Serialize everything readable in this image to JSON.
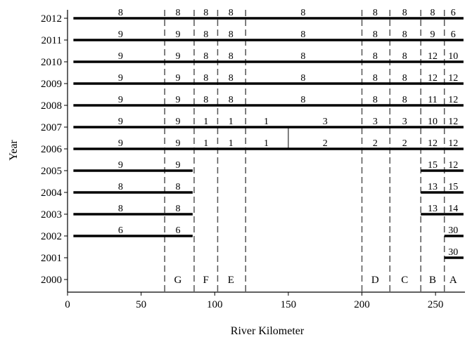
{
  "chart_data": {
    "type": "timeline",
    "title": "",
    "xlabel": "River Kilometer",
    "ylabel": "Year",
    "xlim": [
      0,
      270
    ],
    "ylim": [
      2000,
      2012
    ],
    "xticks": [
      0,
      50,
      100,
      150,
      200,
      250
    ],
    "xtick_labels": [
      "0",
      "50",
      "100",
      "150",
      "200",
      "250"
    ],
    "yticks": [
      2000,
      2001,
      2002,
      2003,
      2004,
      2005,
      2006,
      2007,
      2008,
      2009,
      2010,
      2011,
      2012
    ],
    "ytick_labels": [
      "2000",
      "2001",
      "2002",
      "2003",
      "2004",
      "2005",
      "2006",
      "2007",
      "2008",
      "2009",
      "2010",
      "2011",
      "2012"
    ],
    "colors": {
      "line": "#000000",
      "dashed": "#555555"
    },
    "boundaries": [
      66,
      86,
      102,
      121,
      200,
      219,
      240,
      256
    ],
    "sub_boundaries": [
      {
        "x": 150,
        "years": [
          2006,
          2007
        ]
      }
    ],
    "reaches": [
      {
        "label": "G",
        "x": 75
      },
      {
        "label": "F",
        "x": 94
      },
      {
        "label": "E",
        "x": 111
      },
      {
        "label": "D",
        "x": 209
      },
      {
        "label": "C",
        "x": 229
      },
      {
        "label": "B",
        "x": 248
      },
      {
        "label": "A",
        "x": 262
      }
    ],
    "bars": [
      {
        "year": 2012,
        "start": 4,
        "end": 269
      },
      {
        "year": 2011,
        "start": 4,
        "end": 269
      },
      {
        "year": 2010,
        "start": 4,
        "end": 269
      },
      {
        "year": 2009,
        "start": 4,
        "end": 269
      },
      {
        "year": 2008,
        "start": 4,
        "end": 269
      },
      {
        "year": 2007,
        "start": 4,
        "end": 269
      },
      {
        "year": 2006,
        "start": 4,
        "end": 269
      },
      {
        "year": 2005,
        "start": 4,
        "end": 85
      },
      {
        "year": 2005,
        "start": 240,
        "end": 269
      },
      {
        "year": 2004,
        "start": 4,
        "end": 85
      },
      {
        "year": 2004,
        "start": 240,
        "end": 269
      },
      {
        "year": 2003,
        "start": 4,
        "end": 85
      },
      {
        "year": 2003,
        "start": 240,
        "end": 269
      },
      {
        "year": 2002,
        "start": 4,
        "end": 85
      },
      {
        "year": 2002,
        "start": 256,
        "end": 269
      },
      {
        "year": 2001,
        "start": 256,
        "end": 269
      }
    ],
    "values": [
      {
        "year": 2012,
        "x": 36,
        "text": "8"
      },
      {
        "year": 2012,
        "x": 75,
        "text": "8"
      },
      {
        "year": 2012,
        "x": 94,
        "text": "8"
      },
      {
        "year": 2012,
        "x": 111,
        "text": "8"
      },
      {
        "year": 2012,
        "x": 160,
        "text": "8"
      },
      {
        "year": 2012,
        "x": 209,
        "text": "8"
      },
      {
        "year": 2012,
        "x": 229,
        "text": "8"
      },
      {
        "year": 2012,
        "x": 248,
        "text": "8"
      },
      {
        "year": 2012,
        "x": 262,
        "text": "6"
      },
      {
        "year": 2011,
        "x": 36,
        "text": "9"
      },
      {
        "year": 2011,
        "x": 75,
        "text": "9"
      },
      {
        "year": 2011,
        "x": 94,
        "text": "8"
      },
      {
        "year": 2011,
        "x": 111,
        "text": "8"
      },
      {
        "year": 2011,
        "x": 160,
        "text": "8"
      },
      {
        "year": 2011,
        "x": 209,
        "text": "8"
      },
      {
        "year": 2011,
        "x": 229,
        "text": "8"
      },
      {
        "year": 2011,
        "x": 248,
        "text": "9"
      },
      {
        "year": 2011,
        "x": 262,
        "text": "6"
      },
      {
        "year": 2010,
        "x": 36,
        "text": "9"
      },
      {
        "year": 2010,
        "x": 75,
        "text": "9"
      },
      {
        "year": 2010,
        "x": 94,
        "text": "8"
      },
      {
        "year": 2010,
        "x": 111,
        "text": "8"
      },
      {
        "year": 2010,
        "x": 160,
        "text": "8"
      },
      {
        "year": 2010,
        "x": 209,
        "text": "8"
      },
      {
        "year": 2010,
        "x": 229,
        "text": "8"
      },
      {
        "year": 2010,
        "x": 248,
        "text": "12"
      },
      {
        "year": 2010,
        "x": 262,
        "text": "10"
      },
      {
        "year": 2009,
        "x": 36,
        "text": "9"
      },
      {
        "year": 2009,
        "x": 75,
        "text": "9"
      },
      {
        "year": 2009,
        "x": 94,
        "text": "8"
      },
      {
        "year": 2009,
        "x": 111,
        "text": "8"
      },
      {
        "year": 2009,
        "x": 160,
        "text": "8"
      },
      {
        "year": 2009,
        "x": 209,
        "text": "8"
      },
      {
        "year": 2009,
        "x": 229,
        "text": "8"
      },
      {
        "year": 2009,
        "x": 248,
        "text": "12"
      },
      {
        "year": 2009,
        "x": 262,
        "text": "12"
      },
      {
        "year": 2008,
        "x": 36,
        "text": "9"
      },
      {
        "year": 2008,
        "x": 75,
        "text": "9"
      },
      {
        "year": 2008,
        "x": 94,
        "text": "8"
      },
      {
        "year": 2008,
        "x": 111,
        "text": "8"
      },
      {
        "year": 2008,
        "x": 160,
        "text": "8"
      },
      {
        "year": 2008,
        "x": 209,
        "text": "8"
      },
      {
        "year": 2008,
        "x": 229,
        "text": "8"
      },
      {
        "year": 2008,
        "x": 248,
        "text": "11"
      },
      {
        "year": 2008,
        "x": 262,
        "text": "12"
      },
      {
        "year": 2007,
        "x": 36,
        "text": "9"
      },
      {
        "year": 2007,
        "x": 75,
        "text": "9"
      },
      {
        "year": 2007,
        "x": 94,
        "text": "1"
      },
      {
        "year": 2007,
        "x": 111,
        "text": "1"
      },
      {
        "year": 2007,
        "x": 135,
        "text": "1"
      },
      {
        "year": 2007,
        "x": 175,
        "text": "3"
      },
      {
        "year": 2007,
        "x": 209,
        "text": "3"
      },
      {
        "year": 2007,
        "x": 229,
        "text": "3"
      },
      {
        "year": 2007,
        "x": 248,
        "text": "10"
      },
      {
        "year": 2007,
        "x": 262,
        "text": "12"
      },
      {
        "year": 2006,
        "x": 36,
        "text": "9"
      },
      {
        "year": 2006,
        "x": 75,
        "text": "9"
      },
      {
        "year": 2006,
        "x": 94,
        "text": "1"
      },
      {
        "year": 2006,
        "x": 111,
        "text": "1"
      },
      {
        "year": 2006,
        "x": 135,
        "text": "1"
      },
      {
        "year": 2006,
        "x": 175,
        "text": "2"
      },
      {
        "year": 2006,
        "x": 209,
        "text": "2"
      },
      {
        "year": 2006,
        "x": 229,
        "text": "2"
      },
      {
        "year": 2006,
        "x": 248,
        "text": "12"
      },
      {
        "year": 2006,
        "x": 262,
        "text": "12"
      },
      {
        "year": 2005,
        "x": 36,
        "text": "9"
      },
      {
        "year": 2005,
        "x": 75,
        "text": "9"
      },
      {
        "year": 2005,
        "x": 248,
        "text": "15"
      },
      {
        "year": 2005,
        "x": 262,
        "text": "12"
      },
      {
        "year": 2004,
        "x": 36,
        "text": "8"
      },
      {
        "year": 2004,
        "x": 75,
        "text": "8"
      },
      {
        "year": 2004,
        "x": 248,
        "text": "13"
      },
      {
        "year": 2004,
        "x": 262,
        "text": "15"
      },
      {
        "year": 2003,
        "x": 36,
        "text": "8"
      },
      {
        "year": 2003,
        "x": 75,
        "text": "8"
      },
      {
        "year": 2003,
        "x": 248,
        "text": "13"
      },
      {
        "year": 2003,
        "x": 262,
        "text": "14"
      },
      {
        "year": 2002,
        "x": 36,
        "text": "6"
      },
      {
        "year": 2002,
        "x": 75,
        "text": "6"
      },
      {
        "year": 2002,
        "x": 262,
        "text": "30"
      },
      {
        "year": 2001,
        "x": 262,
        "text": "30"
      }
    ],
    "grid": false,
    "legend": "none"
  }
}
